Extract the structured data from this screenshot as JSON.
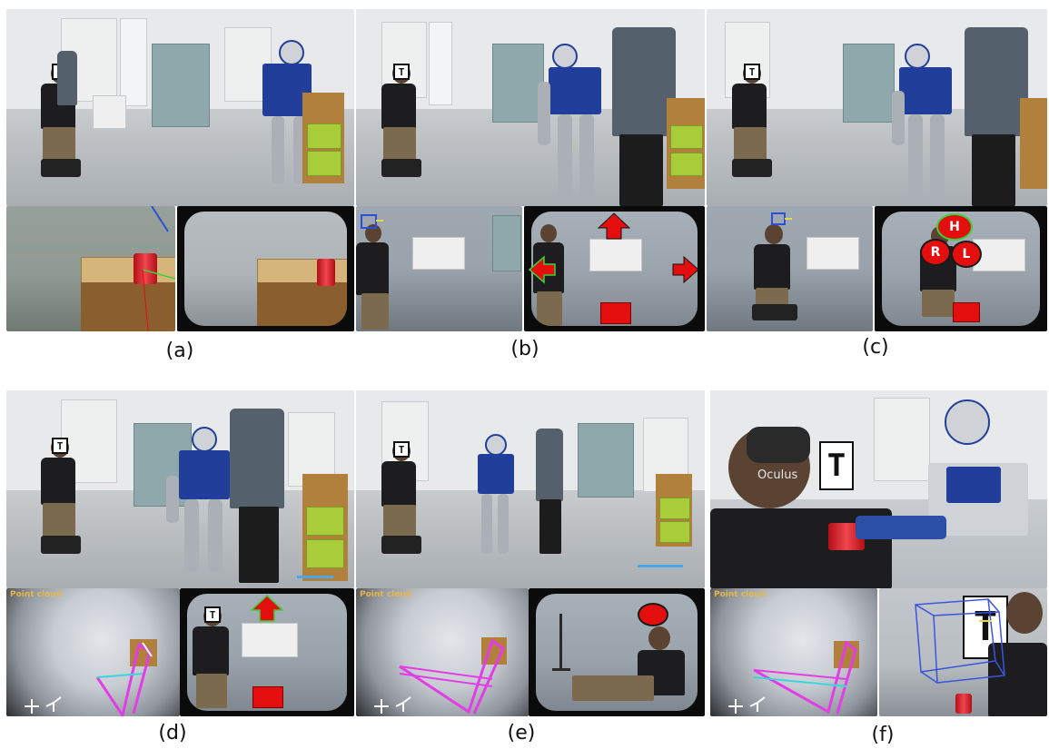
{
  "captions": {
    "a": "(a)",
    "b": "(b)",
    "c": "(c)",
    "d": "(d)",
    "e": "(e)",
    "f": "(f)"
  },
  "overlays": {
    "point_cloud_label": "Point cloud",
    "marker_glyph": "T",
    "oculus_text": "Oculus",
    "vr_buttons": {
      "head": "H",
      "right": "R",
      "left": "L"
    }
  },
  "colors": {
    "overlay_red": "#e40e0e",
    "overlay_green": "#38d23a",
    "trajectory_magenta": "#e23de6",
    "robot_blue": "#213f9a",
    "shelf_green": "#a8cc3a",
    "caption_text": "#111111"
  }
}
